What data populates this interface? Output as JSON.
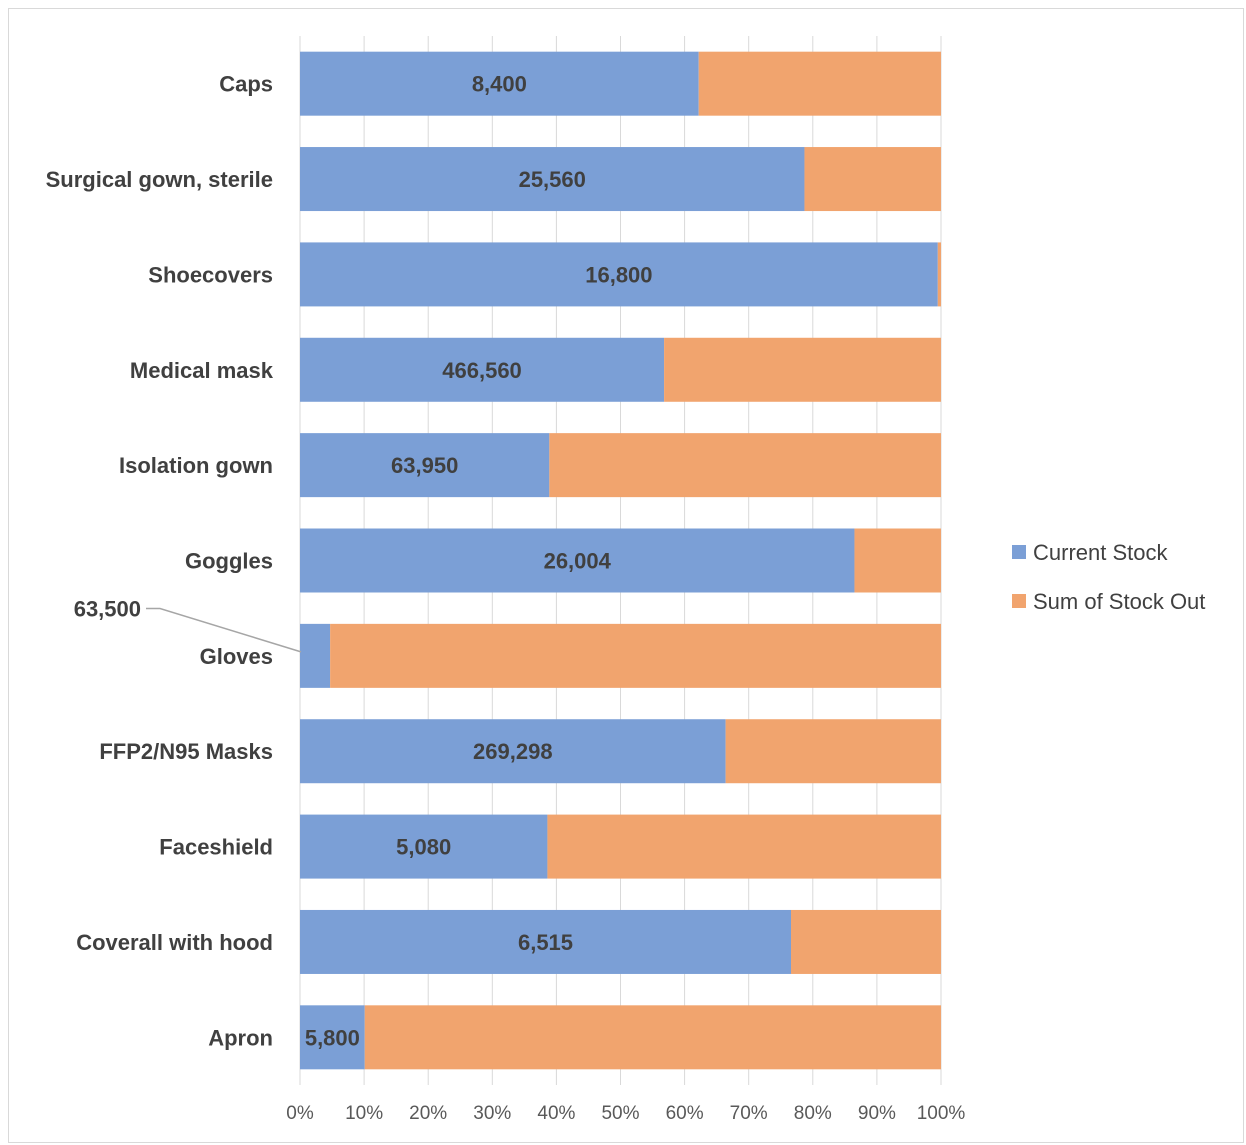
{
  "chart_data": {
    "type": "bar",
    "orientation": "horizontal",
    "stacked": "100%",
    "categories": [
      "Caps",
      "Surgical gown, sterile",
      "Shoecovers",
      "Medical mask",
      "Isolation gown",
      "Goggles",
      "Gloves",
      "FFP2/N95 Masks",
      "Faceshield",
      "Coverall with hood",
      "Apron"
    ],
    "series": [
      {
        "name": "Current Stock",
        "color": "#7b9fd6",
        "percent": [
          62.2,
          78.7,
          99.5,
          56.8,
          38.9,
          86.5,
          4.7,
          66.4,
          38.6,
          76.6,
          10.1
        ],
        "labels": [
          "8,400",
          "25,560",
          "16,800",
          "466,560",
          "63,950",
          "26,004",
          "63,500",
          "269,298",
          "5,080",
          "6,515",
          "5,800"
        ]
      },
      {
        "name": "Sum of Stock Out",
        "color": "#f1a46e",
        "percent": [
          37.8,
          21.3,
          0.5,
          43.2,
          61.1,
          13.5,
          95.3,
          33.6,
          61.4,
          23.4,
          89.9
        ]
      }
    ],
    "xticks": [
      "0%",
      "10%",
      "20%",
      "30%",
      "40%",
      "50%",
      "60%",
      "70%",
      "80%",
      "90%",
      "100%"
    ],
    "xlim": [
      0,
      100
    ],
    "grid": true,
    "legend_position": "right",
    "callout_category": "Gloves"
  }
}
